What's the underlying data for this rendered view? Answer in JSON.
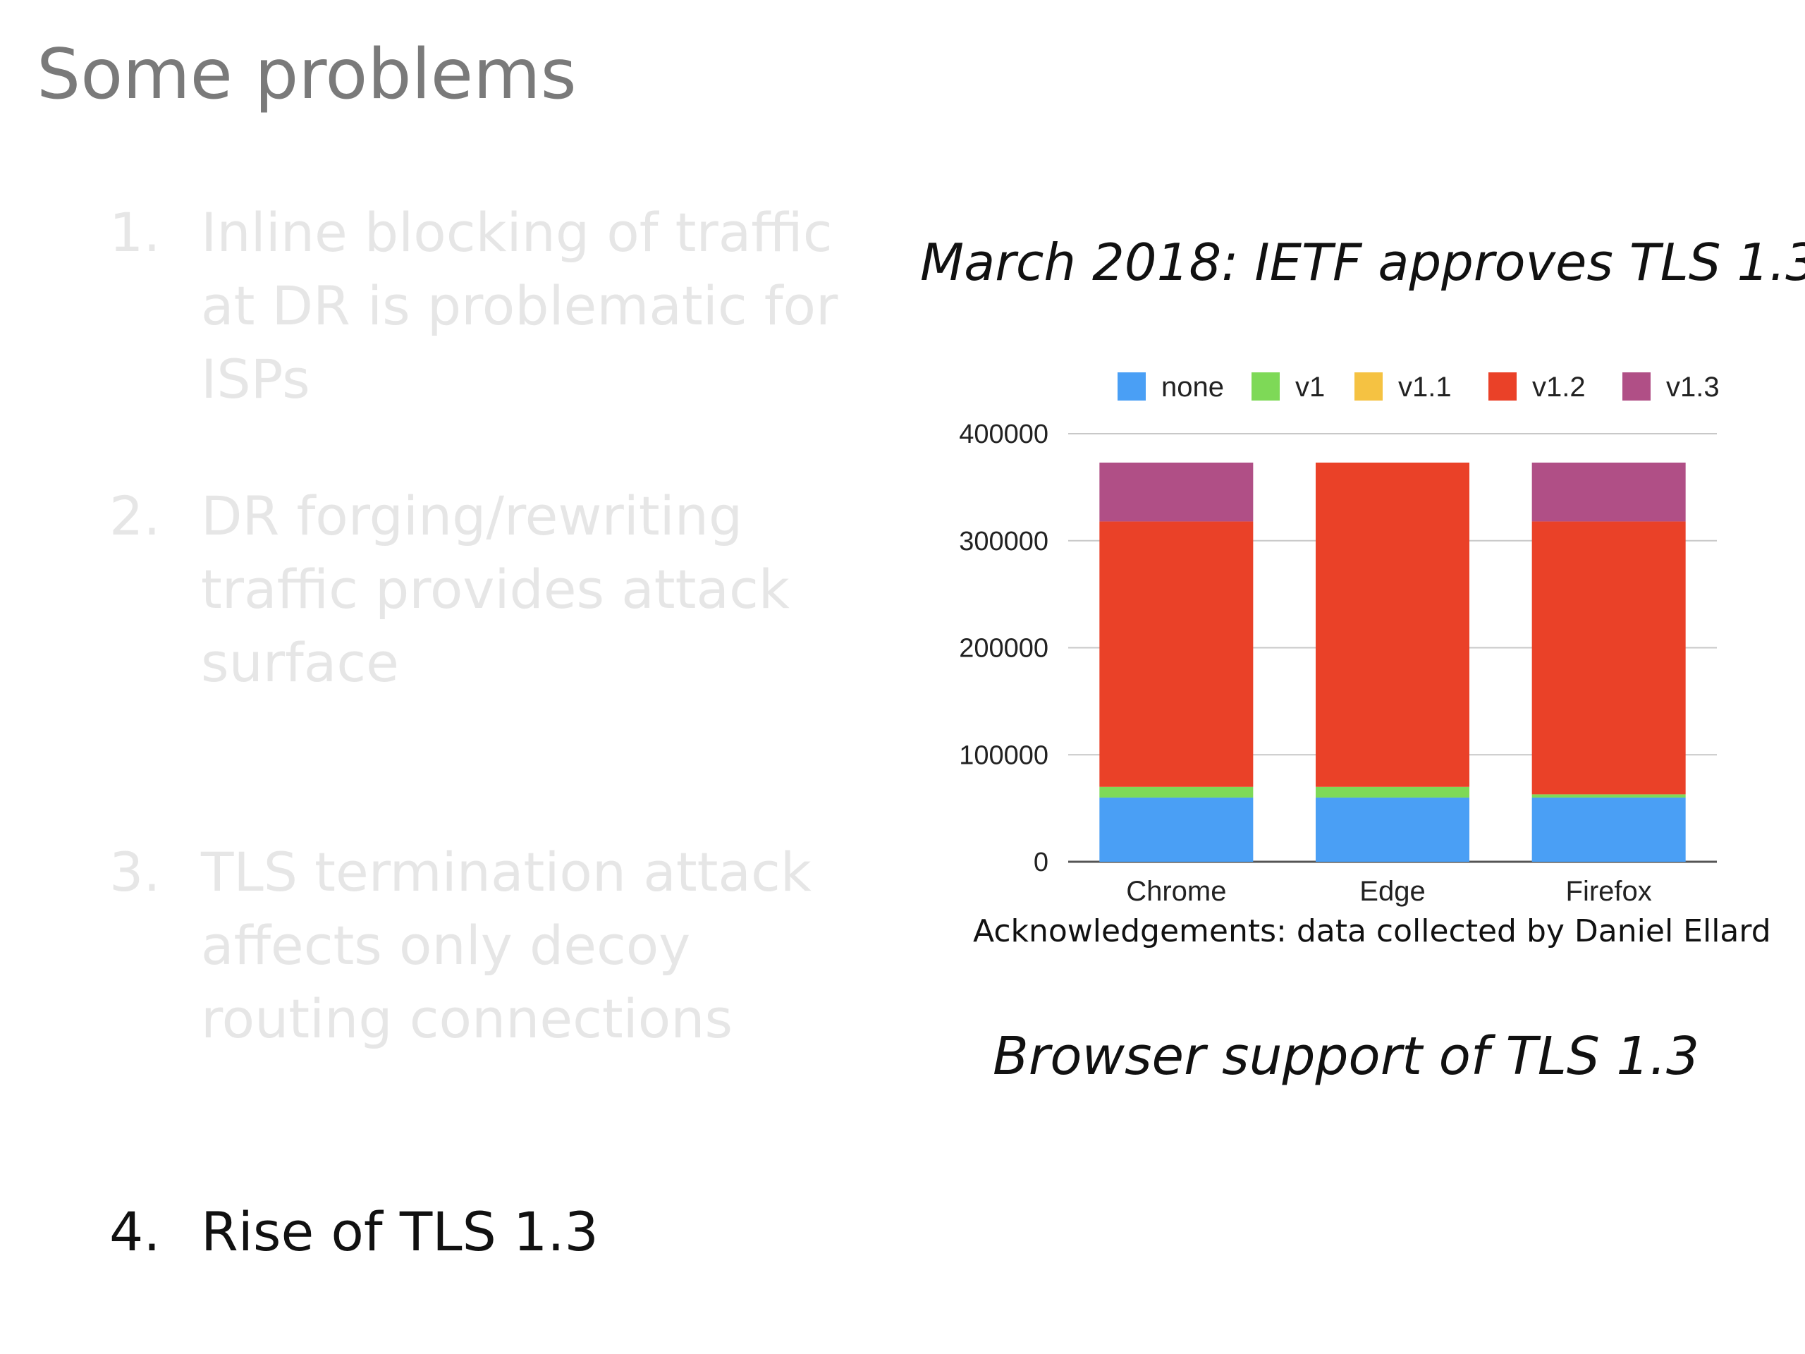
{
  "slide": {
    "title": "Some problems",
    "items": [
      {
        "number": "1.",
        "text": "Inline blocking of traffic at DR is problematic for ISPs"
      },
      {
        "number": "2.",
        "text": "DR forging/rewriting traffic provides attack surface"
      },
      {
        "number": "3.",
        "text": "TLS termination attack affects only decoy routing connections"
      },
      {
        "number": "4.",
        "text": "Rise of TLS 1.3"
      }
    ],
    "right_heading": "March 2018: IETF approves TLS 1.3",
    "acknowledgement": "Acknowledgements: data collected by Daniel Ellard",
    "caption": "Browser support of TLS 1.3"
  },
  "chart_data": {
    "type": "bar",
    "stacked": true,
    "categories": [
      "Chrome",
      "Edge",
      "Firefox"
    ],
    "series": [
      {
        "name": "none",
        "color": "#4a9ff5",
        "values": [
          60000,
          60000,
          60000
        ]
      },
      {
        "name": "v1",
        "color": "#7ed957",
        "values": [
          10000,
          10000,
          3000
        ]
      },
      {
        "name": "v1.1",
        "color": "#f5c242",
        "values": [
          0,
          0,
          0
        ]
      },
      {
        "name": "v1.2",
        "color": "#ea4128",
        "values": [
          248000,
          303000,
          255000
        ]
      },
      {
        "name": "v1.3",
        "color": "#b04f86",
        "values": [
          55000,
          0,
          55000
        ]
      }
    ],
    "ylim": [
      0,
      400000
    ],
    "yticks": [
      "400000",
      "300000",
      "200000",
      "100000",
      "0"
    ],
    "grid": true,
    "legend_position": "top"
  }
}
